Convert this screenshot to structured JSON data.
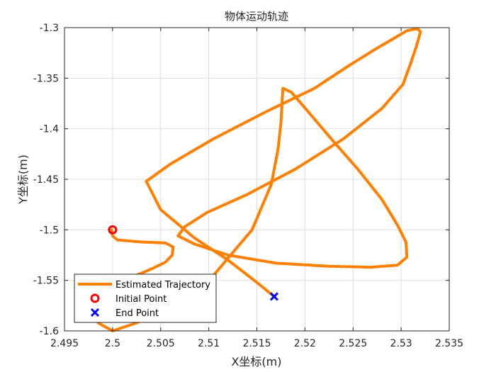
{
  "chart_data": {
    "type": "line",
    "title": "物体运动轨迹",
    "xlabel": "X坐标(m)",
    "ylabel": "Y坐标(m)",
    "xlim": [
      2.495,
      2.535
    ],
    "ylim": [
      -1.6,
      -1.3
    ],
    "xticks": [
      2.495,
      2.5,
      2.505,
      2.51,
      2.515,
      2.52,
      2.525,
      2.53,
      2.535
    ],
    "yticks": [
      -1.3,
      -1.35,
      -1.4,
      -1.45,
      -1.5,
      -1.55,
      -1.6
    ],
    "xtick_labels": [
      "2.495",
      "2.5",
      "2.505",
      "2.51",
      "2.515",
      "2.52",
      "2.525",
      "2.53",
      "2.535"
    ],
    "ytick_labels": [
      "-1.3",
      "-1.35",
      "-1.4",
      "-1.45",
      "-1.5",
      "-1.55",
      "-1.6"
    ],
    "grid": true,
    "legend_position": "bottom-left",
    "colors": {
      "trajectory": "#FF8000",
      "initial": "#FF0000",
      "end": "#0000FF"
    },
    "series": [
      {
        "name": "Estimated Trajectory",
        "style": "line",
        "x": [
          2.4999,
          2.5,
          2.5005,
          2.503,
          2.5055,
          2.5063,
          2.5062,
          2.5055,
          2.5042,
          2.503,
          2.5015,
          2.5,
          2.4985,
          2.498,
          2.4985,
          2.5,
          2.5025,
          2.506,
          2.5105,
          2.5145,
          2.5165,
          2.5172,
          2.5175,
          2.5177,
          2.5186,
          2.5205,
          2.523,
          2.5255,
          2.528,
          2.5296,
          2.5305,
          2.5306,
          2.5296,
          2.5268,
          2.5225,
          2.517,
          2.512,
          2.5085,
          2.5068,
          2.5075,
          2.5098,
          2.514,
          2.519,
          2.524,
          2.528,
          2.5302,
          2.531,
          2.5316,
          2.5319,
          2.532,
          2.5317,
          2.5306,
          2.529,
          2.5272,
          2.5245,
          2.521,
          2.516,
          2.5105,
          2.506,
          2.5035,
          2.505,
          2.5085,
          2.512,
          2.515,
          2.5168
        ],
        "y": [
          -1.5,
          -1.506,
          -1.51,
          -1.512,
          -1.513,
          -1.517,
          -1.525,
          -1.532,
          -1.538,
          -1.543,
          -1.548,
          -1.556,
          -1.566,
          -1.578,
          -1.592,
          -1.6,
          -1.592,
          -1.574,
          -1.545,
          -1.5,
          -1.455,
          -1.42,
          -1.395,
          -1.36,
          -1.364,
          -1.385,
          -1.413,
          -1.44,
          -1.47,
          -1.495,
          -1.512,
          -1.527,
          -1.535,
          -1.537,
          -1.536,
          -1.533,
          -1.525,
          -1.514,
          -1.506,
          -1.497,
          -1.483,
          -1.465,
          -1.44,
          -1.41,
          -1.38,
          -1.356,
          -1.335,
          -1.318,
          -1.308,
          -1.304,
          -1.301,
          -1.303,
          -1.312,
          -1.322,
          -1.338,
          -1.36,
          -1.383,
          -1.41,
          -1.435,
          -1.452,
          -1.48,
          -1.508,
          -1.53,
          -1.552,
          -1.566
        ]
      },
      {
        "name": "Initial Point",
        "style": "marker-o",
        "x": [
          2.5
        ],
        "y": [
          -1.5
        ]
      },
      {
        "name": "End Point",
        "style": "marker-x",
        "x": [
          2.5168
        ],
        "y": [
          -1.566
        ]
      }
    ]
  }
}
